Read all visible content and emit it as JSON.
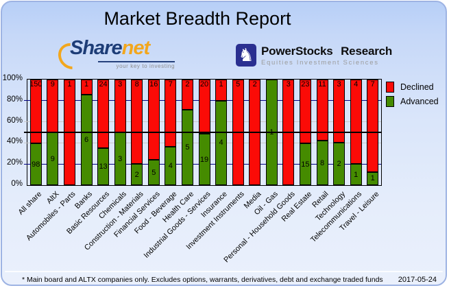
{
  "title": "Market Breadth Report",
  "logos": {
    "sharenet": {
      "part1": "Share",
      "part2": "net",
      "tagline": "your key to investing"
    },
    "powerstocks": {
      "knight_glyph": "♞",
      "word1": "PowerStocks",
      "word2": "Research",
      "subtitle": "Equities Investment Sciences"
    }
  },
  "chart_data": {
    "type": "bar",
    "stacked": true,
    "percent_scale": true,
    "title": "Market Breadth Report",
    "categories": [
      "All share",
      "AltX",
      "Automobiles - Parts",
      "Banks",
      "Basic Resources",
      "Chemicals",
      "Construction - Materials",
      "Financial Services",
      "Food - Beverage",
      "Health Care",
      "Industrial Goods - Services",
      "Insurance",
      "Investment Instruments",
      "Media",
      "Oil - Gas",
      "Personal - Household Goods",
      "Real Estate",
      "Retail",
      "Technology",
      "Telecommunications",
      "Travel - Leisure"
    ],
    "series": [
      {
        "name": "Declined",
        "color": "#fb0b07",
        "values": [
          150,
          9,
          1,
          1,
          24,
          3,
          8,
          16,
          7,
          2,
          20,
          1,
          5,
          2,
          0,
          3,
          23,
          11,
          3,
          4,
          7
        ]
      },
      {
        "name": "Advanced",
        "color": "#458b00",
        "values": [
          98,
          9,
          0,
          6,
          13,
          3,
          2,
          5,
          4,
          5,
          19,
          4,
          0,
          0,
          1,
          0,
          15,
          8,
          2,
          1,
          1
        ]
      }
    ],
    "y_ticks": [
      "100%",
      "80%",
      "60%",
      "40%",
      "20%",
      "0%"
    ],
    "ylim": [
      0,
      100
    ],
    "legend_position": "top-right",
    "gridlines": [
      {
        "pct": 80,
        "color": "#000080",
        "width": 1,
        "over": false
      },
      {
        "pct": 60,
        "color": "#c8c8c8",
        "width": 1,
        "over": false
      },
      {
        "pct": 50,
        "color": "#000000",
        "width": 2,
        "over": true
      },
      {
        "pct": 40,
        "color": "#c8c8c8",
        "width": 1,
        "over": false
      },
      {
        "pct": 20,
        "color": "#000080",
        "width": 1,
        "over": false
      }
    ]
  },
  "footer": {
    "note": "* Main board and ALTX companies only. Excludes options, warrants, derivatives, debt and exchange traded funds",
    "date": "2017-05-24"
  }
}
